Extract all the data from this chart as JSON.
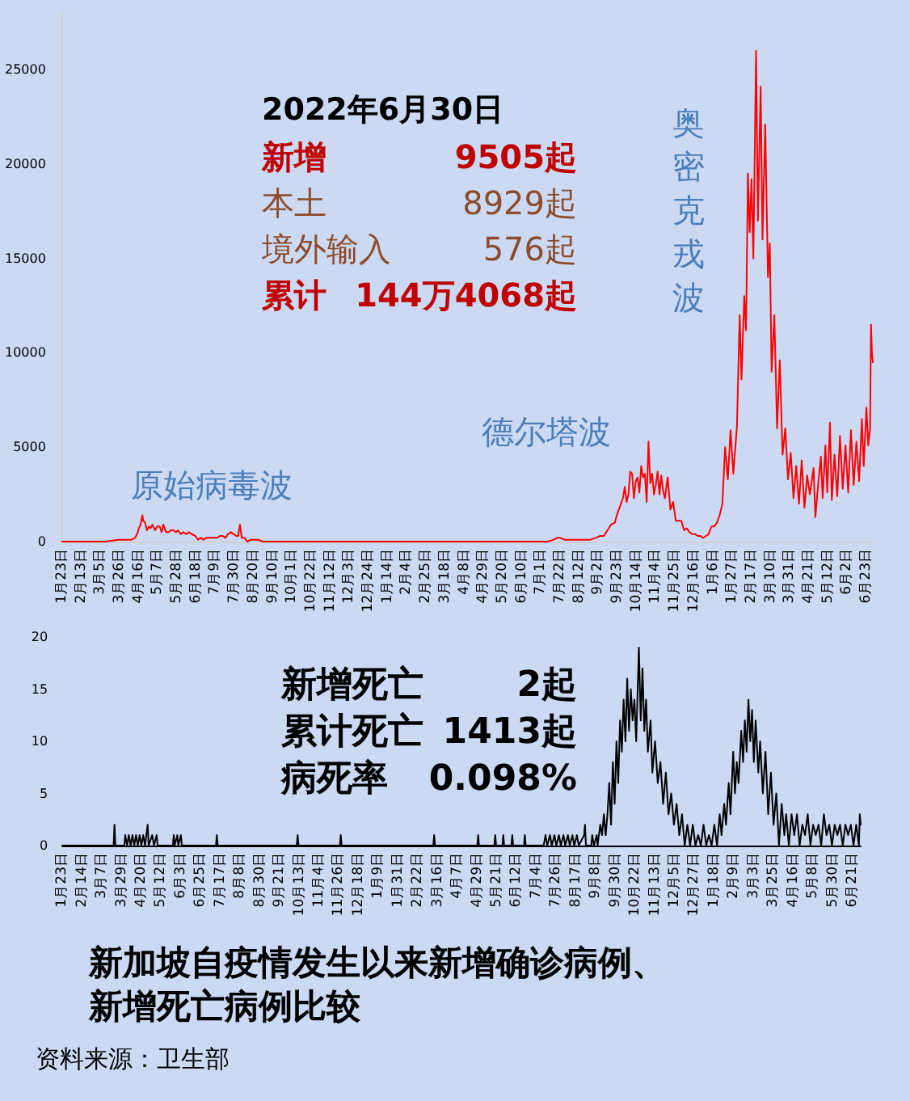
{
  "chart_data": [
    {
      "type": "line",
      "color": "#ff0000",
      "x": [
        "2020-01-23",
        "2020-02-15",
        "2020-03-10",
        "2020-03-25",
        "2020-04-03",
        "2020-04-08",
        "2020-04-12",
        "2020-04-15",
        "2020-04-16",
        "2020-04-18",
        "2020-04-20",
        "2020-04-21",
        "2020-04-23",
        "2020-04-25",
        "2020-04-27",
        "2020-04-29",
        "2020-05-01",
        "2020-05-04",
        "2020-05-06",
        "2020-05-09",
        "2020-05-11",
        "2020-05-13",
        "2020-05-16",
        "2020-05-19",
        "2020-05-21",
        "2020-05-24",
        "2020-05-27",
        "2020-05-29",
        "2020-06-01",
        "2020-06-04",
        "2020-06-07",
        "2020-06-10",
        "2020-06-13",
        "2020-06-17",
        "2020-06-20",
        "2020-06-23",
        "2020-06-26",
        "2020-06-29",
        "2020-07-02",
        "2020-07-05",
        "2020-07-08",
        "2020-07-11",
        "2020-07-14",
        "2020-07-17",
        "2020-07-20",
        "2020-07-23",
        "2020-07-26",
        "2020-07-29",
        "2020-08-01",
        "2020-08-03",
        "2020-08-05",
        "2020-08-07",
        "2020-08-10",
        "2020-08-13",
        "2020-08-17",
        "2020-08-21",
        "2020-08-25",
        "2020-08-30",
        "2020-09-08",
        "2020-09-20",
        "2020-10-10",
        "2020-11-10",
        "2020-12-10",
        "2021-01-10",
        "2021-02-10",
        "2021-03-10",
        "2021-04-10",
        "2021-05-10",
        "2021-05-20",
        "2021-06-05",
        "2021-06-25",
        "2021-07-08",
        "2021-07-15",
        "2021-07-19",
        "2021-07-22",
        "2021-07-27",
        "2021-08-03",
        "2021-08-10",
        "2021-08-17",
        "2021-08-24",
        "2021-08-30",
        "2021-09-04",
        "2021-09-08",
        "2021-09-12",
        "2021-09-16",
        "2021-09-20",
        "2021-09-23",
        "2021-09-26",
        "2021-09-29",
        "2021-10-01",
        "2021-10-03",
        "2021-10-05",
        "2021-10-07",
        "2021-10-09",
        "2021-10-11",
        "2021-10-13",
        "2021-10-15",
        "2021-10-17",
        "2021-10-19",
        "2021-10-21",
        "2021-10-23",
        "2021-10-25",
        "2021-10-27",
        "2021-10-29",
        "2021-10-31",
        "2021-11-02",
        "2021-11-04",
        "2021-11-06",
        "2021-11-08",
        "2021-11-10",
        "2021-11-12",
        "2021-11-14",
        "2021-11-17",
        "2021-11-20",
        "2021-11-23",
        "2021-11-26",
        "2021-11-29",
        "2021-12-02",
        "2021-12-05",
        "2021-12-08",
        "2021-12-11",
        "2021-12-14",
        "2021-12-17",
        "2021-12-20",
        "2021-12-23",
        "2021-12-26",
        "2021-12-29",
        "2022-01-01",
        "2022-01-04",
        "2022-01-07",
        "2022-01-10",
        "2022-01-13",
        "2022-01-16",
        "2022-01-19",
        "2022-01-22",
        "2022-01-25",
        "2022-01-28",
        "2022-02-01",
        "2022-02-04",
        "2022-02-06",
        "2022-02-09",
        "2022-02-11",
        "2022-02-13",
        "2022-02-15",
        "2022-02-17",
        "2022-02-19",
        "2022-02-22",
        "2022-02-24",
        "2022-02-27",
        "2022-03-01",
        "2022-03-04",
        "2022-03-07",
        "2022-03-09",
        "2022-03-11",
        "2022-03-14",
        "2022-03-17",
        "2022-03-20",
        "2022-03-23",
        "2022-03-26",
        "2022-03-29",
        "2022-04-01",
        "2022-04-04",
        "2022-04-07",
        "2022-04-10",
        "2022-04-13",
        "2022-04-16",
        "2022-04-19",
        "2022-04-22",
        "2022-04-26",
        "2022-04-28",
        "2022-05-01",
        "2022-05-04",
        "2022-05-06",
        "2022-05-09",
        "2022-05-11",
        "2022-05-14",
        "2022-05-16",
        "2022-05-19",
        "2022-05-22",
        "2022-05-25",
        "2022-05-28",
        "2022-05-31",
        "2022-06-03",
        "2022-06-06",
        "2022-06-09",
        "2022-06-12",
        "2022-06-15",
        "2022-06-18",
        "2022-06-20",
        "2022-06-23",
        "2022-06-25",
        "2022-06-27",
        "2022-06-28",
        "2022-06-29",
        "2022-06-30"
      ],
      "values": [
        0,
        0,
        0,
        100,
        100,
        100,
        200,
        500,
        700,
        900,
        1400,
        1100,
        1000,
        600,
        800,
        700,
        900,
        600,
        800,
        800,
        500,
        900,
        500,
        500,
        600,
        600,
        500,
        600,
        400,
        500,
        400,
        500,
        400,
        300,
        100,
        200,
        100,
        200,
        200,
        200,
        200,
        200,
        300,
        300,
        200,
        400,
        500,
        400,
        300,
        300,
        900,
        200,
        200,
        0,
        100,
        100,
        100,
        0,
        0,
        0,
        0,
        0,
        0,
        0,
        0,
        0,
        0,
        0,
        0,
        0,
        0,
        0,
        100,
        200,
        200,
        100,
        100,
        100,
        100,
        100,
        200,
        300,
        300,
        600,
        900,
        1000,
        1500,
        1900,
        2300,
        2900,
        2100,
        2500,
        3700,
        3600,
        2300,
        3200,
        3400,
        2600,
        4000,
        3400,
        3600,
        2100,
        5300,
        3100,
        3600,
        2500,
        3000,
        3700,
        2500,
        3500,
        2700,
        2300,
        3400,
        1700,
        2100,
        1100,
        1100,
        1100,
        600,
        700,
        500,
        400,
        400,
        300,
        300,
        200,
        300,
        400,
        800,
        800,
        1000,
        1400,
        2000,
        5000,
        3300,
        5900,
        3600,
        6100,
        12000,
        8600,
        13000,
        11200,
        19500,
        16400,
        19200,
        15000,
        26000,
        17000,
        24100,
        16000,
        22100,
        14000,
        15800,
        9000,
        12000,
        6000,
        9600,
        4600,
        6000,
        3300,
        4700,
        2300,
        4000,
        2000,
        4300,
        1800,
        3500,
        2500,
        3900,
        1300,
        3000,
        4500,
        2300,
        5100,
        2600,
        6300,
        2200,
        4600,
        2400,
        5600,
        2800,
        5100,
        2600,
        5900,
        3000,
        5300,
        3200,
        6500,
        4000,
        7100,
        5100,
        6000,
        11500,
        10000,
        9500
      ],
      "xlim": [
        "2020-01-23",
        "2022-06-30"
      ],
      "xticks": [
        {
          "value": "2020-01-23",
          "label": "1月23日"
        },
        {
          "value": "2020-02-13",
          "label": "2月13日"
        },
        {
          "value": "2020-03-05",
          "label": "3月5日"
        },
        {
          "value": "2020-03-26",
          "label": "3月26日"
        },
        {
          "value": "2020-04-16",
          "label": "4月16日"
        },
        {
          "value": "2020-05-07",
          "label": "5月7日"
        },
        {
          "value": "2020-05-28",
          "label": "5月28日"
        },
        {
          "value": "2020-06-18",
          "label": "6月18日"
        },
        {
          "value": "2020-07-09",
          "label": "7月9日"
        },
        {
          "value": "2020-07-30",
          "label": "7月30日"
        },
        {
          "value": "2020-08-20",
          "label": "8月20日"
        },
        {
          "value": "2020-09-10",
          "label": "9月10日"
        },
        {
          "value": "2020-10-01",
          "label": "10月1日"
        },
        {
          "value": "2020-10-22",
          "label": "10月22日"
        },
        {
          "value": "2020-11-12",
          "label": "11月12日"
        },
        {
          "value": "2020-12-03",
          "label": "12月3日"
        },
        {
          "value": "2020-12-24",
          "label": "12月24日"
        },
        {
          "value": "2021-01-14",
          "label": "1月14日"
        },
        {
          "value": "2021-02-04",
          "label": "2月4日"
        },
        {
          "value": "2021-02-25",
          "label": "2月25日"
        },
        {
          "value": "2021-03-18",
          "label": "3月18日"
        },
        {
          "value": "2021-04-08",
          "label": "4月8日"
        },
        {
          "value": "2021-04-29",
          "label": "4月29日"
        },
        {
          "value": "2021-05-20",
          "label": "5月20日"
        },
        {
          "value": "2021-06-10",
          "label": "6月10日"
        },
        {
          "value": "2021-07-01",
          "label": "7月1日"
        },
        {
          "value": "2021-07-22",
          "label": "7月22日"
        },
        {
          "value": "2021-08-12",
          "label": "8月12日"
        },
        {
          "value": "2021-09-02",
          "label": "9月2日"
        },
        {
          "value": "2021-09-23",
          "label": "9月23日"
        },
        {
          "value": "2021-10-14",
          "label": "10月14日"
        },
        {
          "value": "2021-11-04",
          "label": "11月4日"
        },
        {
          "value": "2021-11-25",
          "label": "11月25日"
        },
        {
          "value": "2021-12-16",
          "label": "12月16日"
        },
        {
          "value": "2022-01-06",
          "label": "1月6日"
        },
        {
          "value": "2022-01-27",
          "label": "1月27日"
        },
        {
          "value": "2022-02-17",
          "label": "2月17日"
        },
        {
          "value": "2022-03-10",
          "label": "3月10日"
        },
        {
          "value": "2022-03-31",
          "label": "3月31日"
        },
        {
          "value": "2022-04-21",
          "label": "4月21日"
        },
        {
          "value": "2022-05-12",
          "label": "5月12日"
        },
        {
          "value": "2022-06-02",
          "label": "6月2日"
        },
        {
          "value": "2022-06-23",
          "label": "6月23日"
        }
      ],
      "ylim": [
        0,
        28000
      ],
      "yticks": [
        0,
        5000,
        10000,
        15000,
        20000,
        25000
      ],
      "grid": false,
      "annotations": [
        "2022年6月30日",
        "新增",
        "9505起",
        "本土",
        "8929起",
        "境外输入",
        "576起",
        "累计",
        "144万4068起",
        "原始病毒波",
        "德尔塔波",
        "奥密克戎波"
      ]
    },
    {
      "type": "line",
      "color": "#000000",
      "x": [
        "2020-01-23",
        "2020-03-20",
        "2020-03-21",
        "2020-03-22",
        "2020-04-01",
        "2020-04-02",
        "2020-04-04",
        "2020-04-06",
        "2020-04-08",
        "2020-04-10",
        "2020-04-12",
        "2020-04-14",
        "2020-04-16",
        "2020-04-18",
        "2020-04-20",
        "2020-04-22",
        "2020-04-24",
        "2020-04-27",
        "2020-04-28",
        "2020-05-02",
        "2020-05-04",
        "2020-05-07",
        "2020-05-08",
        "2020-05-25",
        "2020-05-26",
        "2020-05-27",
        "2020-05-30",
        "2020-05-31",
        "2020-06-03",
        "2020-06-04",
        "2020-07-12",
        "2020-07-13",
        "2020-07-14",
        "2020-10-10",
        "2020-10-11",
        "2020-10-12",
        "2020-11-27",
        "2020-11-28",
        "2020-11-29",
        "2021-03-11",
        "2021-03-12",
        "2021-03-13",
        "2021-04-29",
        "2021-04-30",
        "2021-05-01",
        "2021-05-18",
        "2021-05-19",
        "2021-05-20",
        "2021-05-27",
        "2021-05-28",
        "2021-05-29",
        "2021-06-06",
        "2021-06-07",
        "2021-06-08",
        "2021-06-20",
        "2021-06-21",
        "2021-06-22",
        "2021-07-12",
        "2021-07-14",
        "2021-07-16",
        "2021-07-19",
        "2021-07-21",
        "2021-07-24",
        "2021-07-26",
        "2021-07-29",
        "2021-07-31",
        "2021-08-03",
        "2021-08-05",
        "2021-08-08",
        "2021-08-10",
        "2021-08-13",
        "2021-08-15",
        "2021-08-18",
        "2021-08-20",
        "2021-08-26",
        "2021-08-27",
        "2021-08-28",
        "2021-09-03",
        "2021-09-04",
        "2021-09-06",
        "2021-09-09",
        "2021-09-10",
        "2021-09-13",
        "2021-09-15",
        "2021-09-17",
        "2021-09-19",
        "2021-09-21",
        "2021-09-23",
        "2021-09-25",
        "2021-09-27",
        "2021-09-29",
        "2021-10-01",
        "2021-10-03",
        "2021-10-05",
        "2021-10-07",
        "2021-10-09",
        "2021-10-11",
        "2021-10-13",
        "2021-10-15",
        "2021-10-17",
        "2021-10-19",
        "2021-10-21",
        "2021-10-23",
        "2021-10-26",
        "2021-10-28",
        "2021-10-30",
        "2021-11-01",
        "2021-11-03",
        "2021-11-05",
        "2021-11-08",
        "2021-11-10",
        "2021-11-13",
        "2021-11-16",
        "2021-11-19",
        "2021-11-22",
        "2021-11-25",
        "2021-11-28",
        "2021-12-01",
        "2021-12-04",
        "2021-12-07",
        "2021-12-10",
        "2021-12-13",
        "2021-12-16",
        "2021-12-19",
        "2021-12-22",
        "2021-12-25",
        "2021-12-28",
        "2021-12-31",
        "2022-01-03",
        "2022-01-06",
        "2022-01-09",
        "2022-01-12",
        "2022-01-15",
        "2022-01-18",
        "2022-01-21",
        "2022-01-24",
        "2022-01-26",
        "2022-01-29",
        "2022-01-31",
        "2022-02-03",
        "2022-02-05",
        "2022-02-08",
        "2022-02-10",
        "2022-02-12",
        "2022-02-14",
        "2022-02-17",
        "2022-02-19",
        "2022-02-21",
        "2022-02-23",
        "2022-02-25",
        "2022-02-27",
        "2022-03-01",
        "2022-03-03",
        "2022-03-05",
        "2022-03-08",
        "2022-03-10",
        "2022-03-13",
        "2022-03-16",
        "2022-03-19",
        "2022-03-22",
        "2022-03-25",
        "2022-03-28",
        "2022-03-31",
        "2022-04-03",
        "2022-04-06",
        "2022-04-08",
        "2022-04-11",
        "2022-04-14",
        "2022-04-17",
        "2022-04-20",
        "2022-04-23",
        "2022-04-26",
        "2022-04-29",
        "2022-05-02",
        "2022-05-05",
        "2022-05-08",
        "2022-05-11",
        "2022-05-14",
        "2022-05-17",
        "2022-05-20",
        "2022-05-23",
        "2022-05-26",
        "2022-05-29",
        "2022-06-01",
        "2022-06-04",
        "2022-06-07",
        "2022-06-10",
        "2022-06-13",
        "2022-06-16",
        "2022-06-19",
        "2022-06-22",
        "2022-06-25",
        "2022-06-28",
        "2022-06-29",
        "2022-06-30"
      ],
      "values": [
        0,
        0,
        2,
        0,
        0,
        1,
        0,
        1,
        0,
        1,
        0,
        1,
        0,
        1,
        0,
        1,
        0,
        2,
        0,
        1,
        0,
        1,
        0,
        0,
        1,
        0,
        1,
        0,
        1,
        0,
        0,
        1,
        0,
        0,
        1,
        0,
        0,
        1,
        0,
        0,
        1,
        0,
        0,
        1,
        0,
        0,
        1,
        0,
        0,
        1,
        0,
        0,
        1,
        0,
        0,
        1,
        0,
        0,
        1,
        0,
        1,
        0,
        1,
        0,
        1,
        0,
        1,
        0,
        1,
        0,
        1,
        0,
        1,
        0,
        1,
        2,
        0,
        0,
        1,
        0,
        1,
        0,
        2,
        1,
        3,
        1,
        3,
        6,
        2,
        8,
        4,
        10,
        6,
        12,
        9,
        14,
        10,
        16,
        11,
        15,
        12,
        14,
        10,
        19,
        12,
        17,
        11,
        14,
        9,
        12,
        7,
        10,
        6,
        8,
        4,
        7,
        3,
        5,
        2,
        4,
        1,
        3,
        0,
        2,
        0,
        2,
        0,
        1,
        0,
        2,
        0,
        1,
        0,
        2,
        0,
        3,
        1,
        4,
        2,
        6,
        3,
        9,
        5,
        8,
        6,
        11,
        8,
        12,
        9,
        14,
        10,
        13,
        8,
        12,
        7,
        10,
        5,
        9,
        3,
        7,
        2,
        5,
        0,
        4,
        1,
        3,
        0,
        3,
        1,
        3,
        0,
        2,
        1,
        3,
        0,
        2,
        1,
        2,
        0,
        3,
        1,
        2,
        0,
        2,
        1,
        2,
        0,
        2,
        1,
        2,
        0,
        2,
        0,
        3,
        2
      ],
      "xlim": [
        "2020-01-23",
        "2022-06-30"
      ],
      "xticks": [
        {
          "value": "2020-01-23",
          "label": "1月23日"
        },
        {
          "value": "2020-02-14",
          "label": "2月14日"
        },
        {
          "value": "2020-03-07",
          "label": "3月7日"
        },
        {
          "value": "2020-03-29",
          "label": "3月29日"
        },
        {
          "value": "2020-04-20",
          "label": "4月20日"
        },
        {
          "value": "2020-05-12",
          "label": "5月12日"
        },
        {
          "value": "2020-06-03",
          "label": "6月3日"
        },
        {
          "value": "2020-06-25",
          "label": "6月25日"
        },
        {
          "value": "2020-07-17",
          "label": "7月17日"
        },
        {
          "value": "2020-08-08",
          "label": "8月8日"
        },
        {
          "value": "2020-08-30",
          "label": "8月30日"
        },
        {
          "value": "2020-09-21",
          "label": "9月21日"
        },
        {
          "value": "2020-10-13",
          "label": "10月13日"
        },
        {
          "value": "2020-11-04",
          "label": "11月4日"
        },
        {
          "value": "2020-11-26",
          "label": "11月26日"
        },
        {
          "value": "2020-12-18",
          "label": "12月18日"
        },
        {
          "value": "2021-01-09",
          "label": "1月9日"
        },
        {
          "value": "2021-01-31",
          "label": "1月31日"
        },
        {
          "value": "2021-02-22",
          "label": "2月22日"
        },
        {
          "value": "2021-03-16",
          "label": "3月16日"
        },
        {
          "value": "2021-04-07",
          "label": "4月7日"
        },
        {
          "value": "2021-04-29",
          "label": "4月29日"
        },
        {
          "value": "2021-05-21",
          "label": "5月21日"
        },
        {
          "value": "2021-06-12",
          "label": "6月12日"
        },
        {
          "value": "2021-07-04",
          "label": "7月4日"
        },
        {
          "value": "2021-07-26",
          "label": "7月26日"
        },
        {
          "value": "2021-08-17",
          "label": "8月17日"
        },
        {
          "value": "2021-09-08",
          "label": "9月8日"
        },
        {
          "value": "2021-09-30",
          "label": "9月30日"
        },
        {
          "value": "2021-10-22",
          "label": "10月22日"
        },
        {
          "value": "2021-11-13",
          "label": "11月13日"
        },
        {
          "value": "2021-12-05",
          "label": "12月5日"
        },
        {
          "value": "2021-12-27",
          "label": "12月27日"
        },
        {
          "value": "2022-01-18",
          "label": "1月18日"
        },
        {
          "value": "2022-02-09",
          "label": "2月9日"
        },
        {
          "value": "2022-03-03",
          "label": "3月3日"
        },
        {
          "value": "2022-03-25",
          "label": "3月25日"
        },
        {
          "value": "2022-04-16",
          "label": "4月16日"
        },
        {
          "value": "2022-05-08",
          "label": "5月8日"
        },
        {
          "value": "2022-05-30",
          "label": "5月30日"
        },
        {
          "value": "2022-06-21",
          "label": "6月21日"
        }
      ],
      "ylim": [
        0,
        20
      ],
      "yticks": [
        0,
        5,
        10,
        15,
        20
      ],
      "grid": false,
      "title": "新加坡自疫情发生以来新增确诊病例、新增死亡病例比较",
      "annotations": [
        "资料来源：卫生部",
        "新增死亡",
        "2起",
        "累计死亡",
        "1413起",
        "病死率",
        "0.098%"
      ]
    }
  ]
}
